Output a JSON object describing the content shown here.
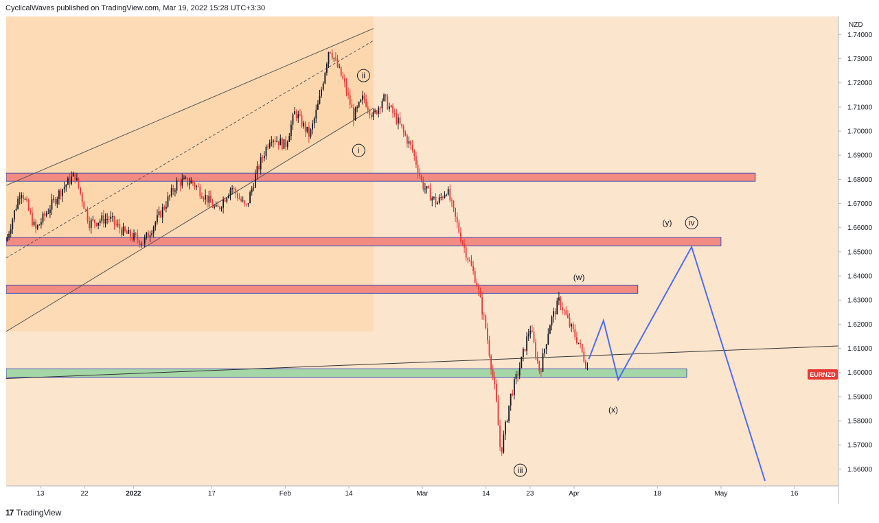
{
  "header": {
    "publisher_line": "CyclicalWaves published on TradingView.com, Mar 19, 2022 15:28 UTC+3:30"
  },
  "footer": {
    "brand": "TradingView",
    "logo_icon": "tradingview-logo-icon"
  },
  "chart_data": {
    "type": "candlestick",
    "symbol": "EURNZD",
    "currency": "NZD",
    "colors": {
      "up": "#131722",
      "down": "#e53935",
      "projection": "#4a6cf7",
      "symbol_badge": "#e53935",
      "resistance": "#f28b82",
      "support": "#a5d6a7"
    },
    "y_axis": {
      "ylim": [
        1.553,
        1.7475
      ],
      "ticks": [
        "1.74000",
        "1.73000",
        "1.72000",
        "1.71000",
        "1.70000",
        "1.69000",
        "1.68000",
        "1.67000",
        "1.66000",
        "1.65000",
        "1.64000",
        "1.63000",
        "1.62000",
        "1.61000",
        "1.60000",
        "1.59000",
        "1.58000",
        "1.57000",
        "1.56000"
      ]
    },
    "x_axis": {
      "xlim": [
        "2021-12-06",
        "2022-05-25"
      ],
      "ticks": [
        {
          "date": "2021-12-13",
          "label": "13",
          "bold": false
        },
        {
          "date": "2021-12-22",
          "label": "22",
          "bold": false
        },
        {
          "date": "2022-01-01",
          "label": "2022",
          "bold": true
        },
        {
          "date": "2022-01-17",
          "label": "17",
          "bold": false
        },
        {
          "date": "2022-02-01",
          "label": "Feb",
          "bold": false
        },
        {
          "date": "2022-02-14",
          "label": "14",
          "bold": false
        },
        {
          "date": "2022-03-01",
          "label": "Mar",
          "bold": false
        },
        {
          "date": "2022-03-14",
          "label": "14",
          "bold": false
        },
        {
          "date": "2022-03-23",
          "label": "23",
          "bold": false
        },
        {
          "date": "2022-04-01",
          "label": "Apr",
          "bold": false
        },
        {
          "date": "2022-04-18",
          "label": "18",
          "bold": false
        },
        {
          "date": "2022-05-01",
          "label": "May",
          "bold": false
        },
        {
          "date": "2022-05-16",
          "label": "16",
          "bold": false
        }
      ]
    },
    "price_path": [
      [
        "2021-12-06",
        1.6545
      ],
      [
        "2021-12-09",
        1.676
      ],
      [
        "2021-12-12",
        1.659
      ],
      [
        "2021-12-17",
        1.675
      ],
      [
        "2021-12-20",
        1.682
      ],
      [
        "2021-12-23",
        1.662
      ],
      [
        "2021-12-27",
        1.664
      ],
      [
        "2021-12-30",
        1.658
      ],
      [
        "2022-01-03",
        1.654
      ],
      [
        "2022-01-06",
        1.664
      ],
      [
        "2022-01-10",
        1.679
      ],
      [
        "2022-01-13",
        1.679
      ],
      [
        "2022-01-16",
        1.672
      ],
      [
        "2022-01-18",
        1.667
      ],
      [
        "2022-01-21",
        1.677
      ],
      [
        "2022-01-24",
        1.668
      ],
      [
        "2022-01-26",
        1.682
      ],
      [
        "2022-01-29",
        1.698
      ],
      [
        "2022-02-01",
        1.694
      ],
      [
        "2022-02-03",
        1.708
      ],
      [
        "2022-02-06",
        1.698
      ],
      [
        "2022-02-08",
        1.713
      ],
      [
        "2022-02-10",
        1.735
      ],
      [
        "2022-02-13",
        1.72
      ],
      [
        "2022-02-15",
        1.706
      ],
      [
        "2022-02-17",
        1.714
      ],
      [
        "2022-02-19",
        1.706
      ],
      [
        "2022-02-21",
        1.714
      ],
      [
        "2022-02-24",
        1.704
      ],
      [
        "2022-02-27",
        1.692
      ],
      [
        "2022-03-01",
        1.678
      ],
      [
        "2022-03-02",
        1.675
      ],
      [
        "2022-03-04",
        1.67
      ],
      [
        "2022-03-06",
        1.676
      ],
      [
        "2022-03-09",
        1.655
      ],
      [
        "2022-03-12",
        1.638
      ],
      [
        "2022-03-14",
        1.618
      ],
      [
        "2022-03-16",
        1.59
      ],
      [
        "2022-03-17",
        1.566
      ],
      [
        "2022-03-19",
        1.59
      ],
      [
        "2022-03-21",
        1.603
      ],
      [
        "2022-03-23",
        1.619
      ],
      [
        "2022-03-25",
        1.6
      ],
      [
        "2022-03-27",
        1.62
      ],
      [
        "2022-03-29",
        1.63
      ],
      [
        "2022-03-31",
        1.62
      ],
      [
        "2022-04-02",
        1.612
      ],
      [
        "2022-04-04",
        1.6
      ]
    ],
    "zones": [
      {
        "kind": "resistance",
        "x_end": "2022-05-08",
        "y_low": 1.6792,
        "y_high": 1.6826
      },
      {
        "kind": "resistance",
        "x_end": "2022-05-01",
        "y_low": 1.6525,
        "y_high": 1.656
      },
      {
        "kind": "resistance",
        "x_end": "2022-04-14",
        "y_low": 1.6328,
        "y_high": 1.6362
      },
      {
        "kind": "support",
        "x_end": "2022-04-24",
        "y_low": 1.598,
        "y_high": 1.6015
      }
    ],
    "channel": {
      "x_start": "2021-12-06",
      "x_end": "2022-02-19",
      "upper": [
        1.6775,
        1.7425
      ],
      "middle": [
        1.6475,
        1.7375
      ],
      "lower": [
        1.617,
        1.7095
      ]
    },
    "trendline": {
      "x_start": "2021-12-06",
      "y_start": 1.5975,
      "x_end": "2022-05-25",
      "y_end": 1.611
    },
    "projection": [
      [
        "2022-04-04",
        1.6055
      ],
      [
        "2022-04-07",
        1.6215
      ],
      [
        "2022-04-10",
        1.597
      ],
      [
        "2022-04-25",
        1.652
      ],
      [
        "2022-05-10",
        1.555
      ]
    ],
    "wave_labels": [
      {
        "text": "ii",
        "circled": true,
        "date": "2022-02-17",
        "price": 1.723
      },
      {
        "text": "i",
        "circled": true,
        "date": "2022-02-16",
        "price": 1.692
      },
      {
        "text": "iii",
        "circled": true,
        "date": "2022-03-21",
        "price": 1.5595
      },
      {
        "text": "(w)",
        "date": "2022-04-02",
        "price": 1.6395
      },
      {
        "text": "(x)",
        "date": "2022-04-09",
        "price": 1.5845
      },
      {
        "text": "(y)",
        "date": "2022-04-20",
        "price": 1.662
      },
      {
        "text": "iv",
        "circled": true,
        "date": "2022-04-25",
        "price": 1.662
      }
    ]
  }
}
